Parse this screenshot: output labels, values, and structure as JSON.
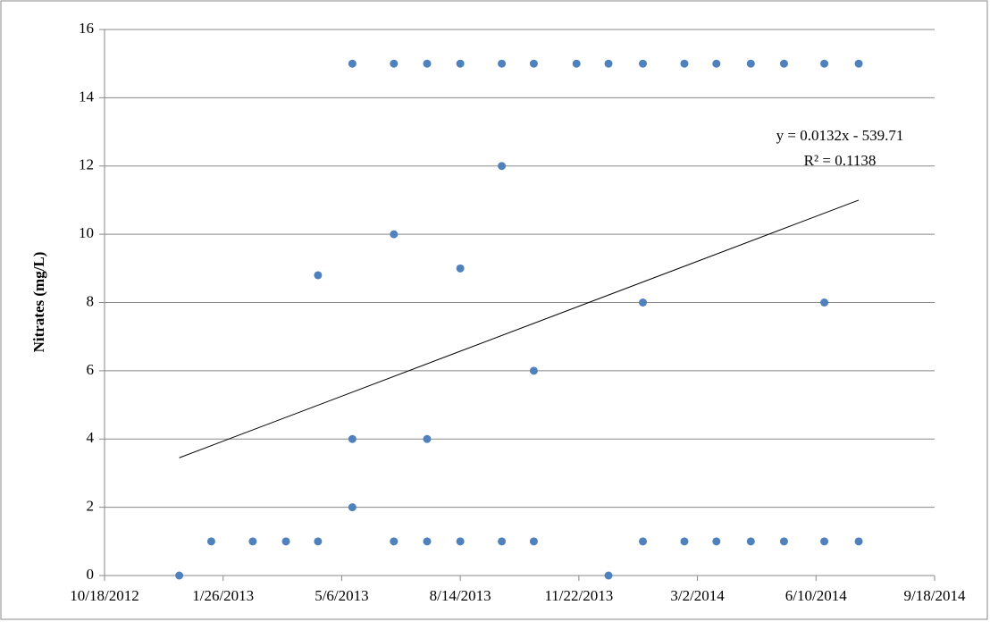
{
  "chart_data": {
    "type": "scatter",
    "y_label": "Nitrates (mg/L)",
    "series": [
      {
        "color": "#4f81bd",
        "x": [
          41263,
          41290,
          41325,
          41353,
          41380,
          41380,
          41409,
          41409,
          41409,
          41444,
          41444,
          41444,
          41472,
          41472,
          41472,
          41500,
          41500,
          41500,
          41535,
          41535,
          41535,
          41562,
          41562,
          41562,
          41598,
          41625,
          41625,
          41654,
          41654,
          41654,
          41689,
          41689,
          41716,
          41716,
          41745,
          41745,
          41773,
          41773,
          41807,
          41807,
          41807,
          41836,
          41836
        ],
        "values": [
          0,
          1,
          1,
          1,
          1,
          8.8,
          15,
          4,
          2,
          15,
          10,
          1,
          15,
          4,
          1,
          15,
          9,
          1,
          15,
          12,
          1,
          15,
          6,
          1,
          15,
          15,
          0,
          15,
          8,
          1,
          15,
          1,
          15,
          1,
          15,
          1,
          15,
          1,
          15,
          8,
          1,
          15,
          1
        ]
      }
    ],
    "trendline": {
      "color": "#000000",
      "x": [
        41263,
        41836
      ],
      "values": [
        3.45,
        11.0
      ],
      "equation": "y = 0.0132x - 539.71",
      "r_squared": "R² = 0.1138"
    },
    "xlim": [
      41200,
      41900
    ],
    "xticks": [
      {
        "value": 41200,
        "label": "10/18/2012"
      },
      {
        "value": 41300,
        "label": "1/26/2013"
      },
      {
        "value": 41400,
        "label": "5/6/2013"
      },
      {
        "value": 41500,
        "label": "8/14/2013"
      },
      {
        "value": 41600,
        "label": "11/22/2013"
      },
      {
        "value": 41700,
        "label": "3/2/2014"
      },
      {
        "value": 41800,
        "label": "6/10/2014"
      },
      {
        "value": 41900,
        "label": "9/18/2014"
      }
    ],
    "ylim": [
      0,
      16
    ],
    "yticks": [
      0,
      2,
      4,
      6,
      8,
      10,
      12,
      14,
      16
    ],
    "grid": true
  }
}
